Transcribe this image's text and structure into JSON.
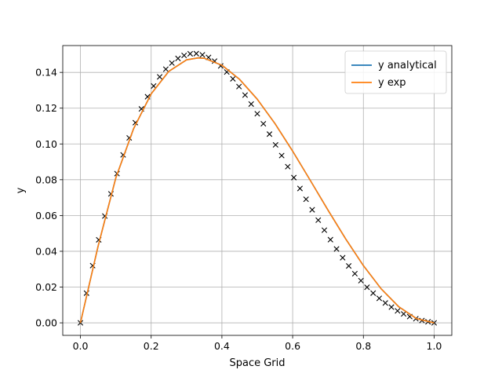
{
  "chart_data": {
    "type": "line",
    "title": "",
    "xlabel": "Space Grid",
    "ylabel": "y",
    "xlim": [
      -0.05,
      1.05
    ],
    "ylim": [
      -0.007,
      0.155
    ],
    "xticks": [
      0.0,
      0.2,
      0.4,
      0.6,
      0.8,
      1.0
    ],
    "xtick_labels": [
      "0.0",
      "0.2",
      "0.4",
      "0.6",
      "0.8",
      "1.0"
    ],
    "yticks": [
      0.0,
      0.02,
      0.04,
      0.06,
      0.08,
      0.1,
      0.12,
      0.14
    ],
    "ytick_labels": [
      "0.00",
      "0.02",
      "0.04",
      "0.06",
      "0.08",
      "0.10",
      "0.12",
      "0.14"
    ],
    "grid": true,
    "legend_position": "top-right",
    "series": [
      {
        "name": "y analytical",
        "color": "#1f77b4",
        "style": "line",
        "x": [
          0.0,
          0.05,
          0.1,
          0.15,
          0.2,
          0.25,
          0.3,
          0.333,
          0.35,
          0.4,
          0.45,
          0.5,
          0.55,
          0.6,
          0.65,
          0.7,
          0.75,
          0.8,
          0.85,
          0.9,
          0.95,
          1.0
        ],
        "y": [
          0.0,
          0.0429,
          0.081,
          0.1084,
          0.128,
          0.1406,
          0.147,
          0.1481,
          0.1479,
          0.144,
          0.1361,
          0.125,
          0.1114,
          0.096,
          0.0796,
          0.063,
          0.0469,
          0.032,
          0.0191,
          0.009,
          0.0024,
          0.0
        ]
      },
      {
        "name": "y exp",
        "color": "#ff7f0e",
        "style": "line",
        "x": [
          0.0,
          0.05,
          0.1,
          0.15,
          0.2,
          0.25,
          0.3,
          0.333,
          0.35,
          0.4,
          0.45,
          0.5,
          0.55,
          0.6,
          0.65,
          0.7,
          0.75,
          0.8,
          0.85,
          0.9,
          0.95,
          1.0
        ],
        "y": [
          0.0,
          0.0429,
          0.081,
          0.1084,
          0.128,
          0.1406,
          0.147,
          0.1481,
          0.1479,
          0.144,
          0.1361,
          0.125,
          0.1114,
          0.096,
          0.0796,
          0.063,
          0.0469,
          0.032,
          0.0191,
          0.009,
          0.0024,
          0.0
        ]
      },
      {
        "name": "",
        "color": "#000000",
        "style": "x-markers",
        "x": [
          0.0,
          0.0172,
          0.0345,
          0.0517,
          0.069,
          0.0862,
          0.1034,
          0.1207,
          0.1379,
          0.1552,
          0.1724,
          0.1897,
          0.2069,
          0.2241,
          0.2414,
          0.2586,
          0.2759,
          0.2931,
          0.3103,
          0.3276,
          0.3448,
          0.3621,
          0.3793,
          0.3966,
          0.4138,
          0.431,
          0.4483,
          0.4655,
          0.4828,
          0.5,
          0.5172,
          0.5345,
          0.5517,
          0.569,
          0.5862,
          0.6034,
          0.6207,
          0.6379,
          0.6552,
          0.6724,
          0.6897,
          0.7069,
          0.7241,
          0.7414,
          0.7586,
          0.7759,
          0.7931,
          0.8103,
          0.8276,
          0.8448,
          0.8621,
          0.8793,
          0.8966,
          0.9138,
          0.931,
          0.9483,
          0.9655,
          0.9828,
          1.0
        ],
        "y": [
          0.0,
          0.0166,
          0.032,
          0.0464,
          0.0597,
          0.0721,
          0.0834,
          0.0939,
          0.1034,
          0.1119,
          0.1196,
          0.1264,
          0.1324,
          0.1375,
          0.1418,
          0.1452,
          0.1478,
          0.1495,
          0.1504,
          0.1505,
          0.1498,
          0.1484,
          0.1463,
          0.1436,
          0.1402,
          0.1364,
          0.1321,
          0.1273,
          0.1223,
          0.1169,
          0.1113,
          0.1055,
          0.0995,
          0.0935,
          0.0873,
          0.0812,
          0.0751,
          0.0691,
          0.0632,
          0.0574,
          0.0518,
          0.0465,
          0.0413,
          0.0364,
          0.0318,
          0.0275,
          0.0236,
          0.0199,
          0.0166,
          0.0137,
          0.0111,
          0.0088,
          0.0067,
          0.005,
          0.0035,
          0.0023,
          0.0013,
          0.0006,
          0.0
        ]
      }
    ]
  }
}
